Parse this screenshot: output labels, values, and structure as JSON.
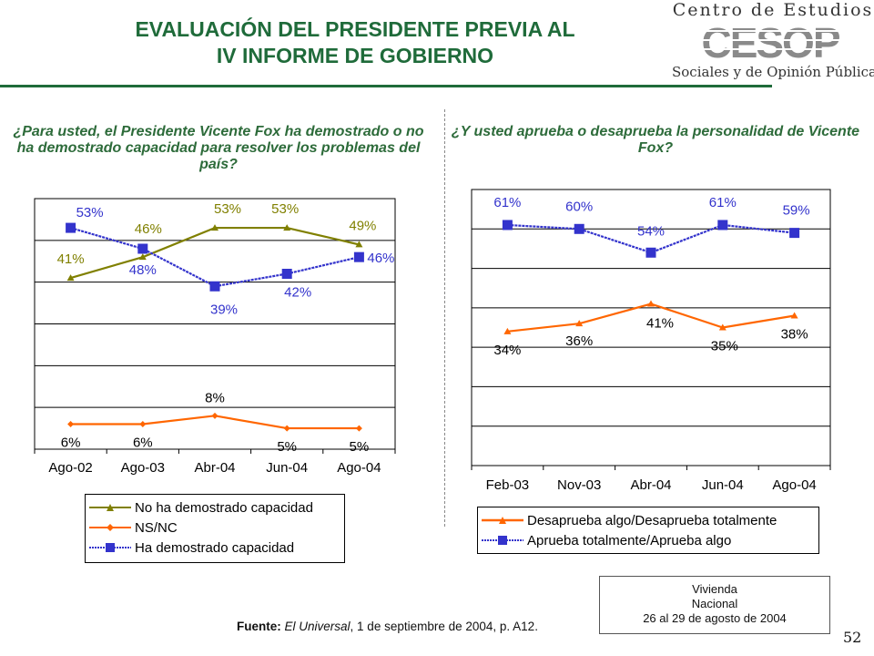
{
  "title": {
    "line1": "EVALUACIÓN DEL PRESIDENTE PREVIA AL",
    "line2": "IV INFORME DE GOBIERNO"
  },
  "logo": {
    "top": "Centro de Estudios",
    "mark": "CESOP",
    "bottom": "Sociales y de Opinión Pública"
  },
  "colors": {
    "title": "#1f6b3a",
    "olive": "#808000",
    "orange": "#ff6600",
    "blue": "#3333cc"
  },
  "chart_data": [
    {
      "type": "line",
      "title": "¿Para usted, el Presidente Vicente Fox ha demostrado o no ha demostrado capacidad para resolver los problemas del país?",
      "categories": [
        "Ago-02",
        "Ago-03",
        "Abr-04",
        "Jun-04",
        "Ago-04"
      ],
      "ylim": [
        0,
        60
      ],
      "grid": true,
      "legend_position": "bottom",
      "series": [
        {
          "name": "No ha demostrado capacidad",
          "color": "#808000",
          "marker": "triangle",
          "values": [
            41,
            46,
            53,
            53,
            49
          ],
          "labels": [
            "41%",
            "46%",
            "53%",
            "53%",
            "49%"
          ]
        },
        {
          "name": "NS/NC",
          "color": "#ff6600",
          "marker": "diamond",
          "values": [
            6,
            6,
            8,
            5,
            5
          ],
          "labels": [
            "6%",
            "6%",
            "8%",
            "5%",
            "5%"
          ]
        },
        {
          "name": "Ha demostrado capacidad",
          "color": "#3333cc",
          "marker": "square",
          "values": [
            53,
            48,
            39,
            42,
            46
          ],
          "labels": [
            "53%",
            "48%",
            "39%",
            "42%",
            "46%"
          ]
        }
      ]
    },
    {
      "type": "line",
      "title": "¿Y usted aprueba o desaprueba la personalidad  de Vicente Fox?",
      "categories": [
        "Feb-03",
        "Nov-03",
        "Abr-04",
        "Jun-04",
        "Ago-04"
      ],
      "ylim": [
        0,
        70
      ],
      "grid": true,
      "legend_position": "bottom",
      "series": [
        {
          "name": "Desaprueba algo/Desaprueba totalmente",
          "color": "#ff6600",
          "marker": "triangle",
          "values": [
            34,
            36,
            41,
            35,
            38
          ],
          "labels": [
            "34%",
            "36%",
            "41%",
            "35%",
            "38%"
          ]
        },
        {
          "name": "Aprueba totalmente/Aprueba algo",
          "color": "#3333cc",
          "marker": "square",
          "values": [
            61,
            60,
            54,
            61,
            59
          ],
          "labels": [
            "61%",
            "60%",
            "54%",
            "61%",
            "59%"
          ]
        }
      ]
    }
  ],
  "source": {
    "label": "Fuente:",
    "publication": "El Universal",
    "rest": ", 1 de septiembre de 2004, p. A12."
  },
  "note": {
    "line1": "Vivienda",
    "line2": "Nacional",
    "line3": "26 al 29 de agosto de 2004"
  },
  "page_number": "52"
}
